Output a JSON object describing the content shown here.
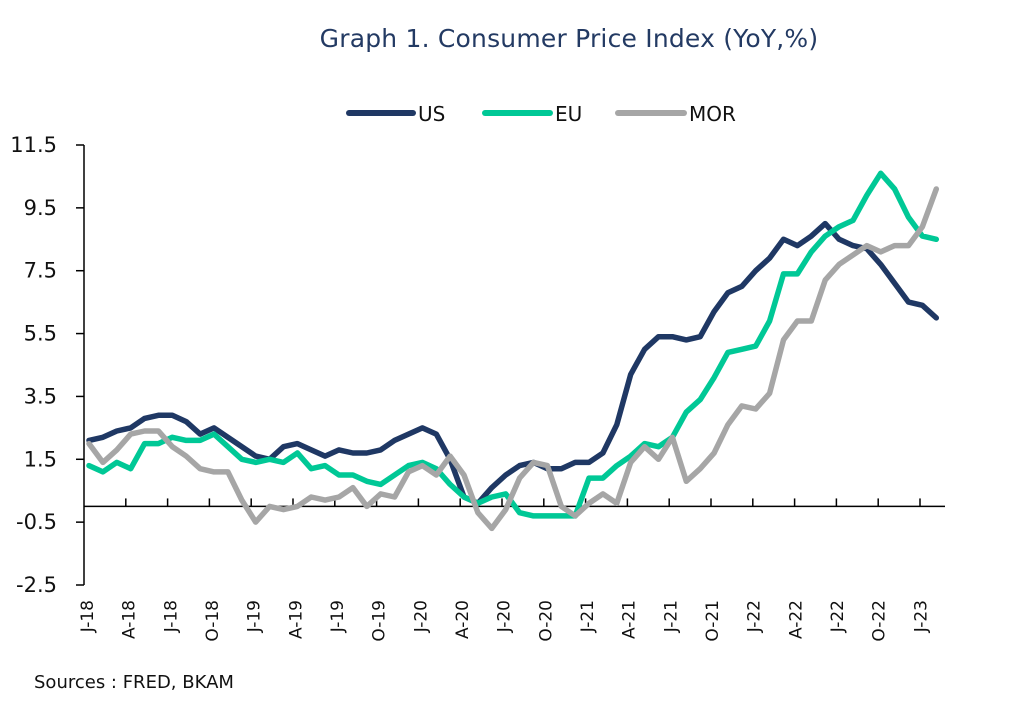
{
  "chart_data": {
    "type": "line",
    "title": "Graph 1. Consumer Price Index (YoY,%)",
    "xlabel": "",
    "ylabel": "",
    "ylim": [
      -2.5,
      11.5
    ],
    "yticks": [
      "11.5",
      "9.5",
      "7.5",
      "5.5",
      "3.5",
      "1.5",
      "-0.5",
      "-2.5"
    ],
    "ytick_values": [
      11.5,
      9.5,
      7.5,
      5.5,
      3.5,
      1.5,
      -0.5,
      -2.5
    ],
    "xtick_labels": [
      "J-18",
      "A-18",
      "J-18",
      "O-18",
      "J-19",
      "A-19",
      "J-19",
      "O-19",
      "J-20",
      "A-20",
      "J-20",
      "O-20",
      "J-21",
      "A-21",
      "J-21",
      "O-21",
      "J-22",
      "A-22",
      "J-22",
      "O-22",
      "J-23"
    ],
    "x_start": "Jan 2018",
    "x_end": "Feb 2023",
    "x_frequency": "monthly",
    "grid": false,
    "legend_position": "top-center",
    "series": [
      {
        "name": "US",
        "color": "#1f3864",
        "values": [
          2.1,
          2.2,
          2.4,
          2.5,
          2.8,
          2.9,
          2.9,
          2.7,
          2.3,
          2.5,
          2.2,
          1.9,
          1.6,
          1.5,
          1.9,
          2.0,
          1.8,
          1.6,
          1.8,
          1.7,
          1.7,
          1.8,
          2.1,
          2.3,
          2.5,
          2.3,
          1.5,
          0.3,
          0.1,
          0.6,
          1.0,
          1.3,
          1.4,
          1.2,
          1.2,
          1.4,
          1.4,
          1.7,
          2.6,
          4.2,
          5.0,
          5.4,
          5.4,
          5.3,
          5.4,
          6.2,
          6.8,
          7.0,
          7.5,
          7.9,
          8.5,
          8.3,
          8.6,
          9.0,
          8.5,
          8.3,
          8.2,
          7.7,
          7.1,
          6.5,
          6.4,
          6.0
        ]
      },
      {
        "name": "EU",
        "color": "#00c896",
        "values": [
          1.3,
          1.1,
          1.4,
          1.2,
          2.0,
          2.0,
          2.2,
          2.1,
          2.1,
          2.3,
          1.9,
          1.5,
          1.4,
          1.5,
          1.4,
          1.7,
          1.2,
          1.3,
          1.0,
          1.0,
          0.8,
          0.7,
          1.0,
          1.3,
          1.4,
          1.2,
          0.7,
          0.3,
          0.1,
          0.3,
          0.4,
          -0.2,
          -0.3,
          -0.3,
          -0.3,
          -0.3,
          0.9,
          0.9,
          1.3,
          1.6,
          2.0,
          1.9,
          2.2,
          3.0,
          3.4,
          4.1,
          4.9,
          5.0,
          5.1,
          5.9,
          7.4,
          7.4,
          8.1,
          8.6,
          8.9,
          9.1,
          9.9,
          10.6,
          10.1,
          9.2,
          8.6,
          8.5
        ]
      },
      {
        "name": "MOR",
        "color": "#a6a6a6",
        "values": [
          2.0,
          1.4,
          1.8,
          2.3,
          2.4,
          2.4,
          1.9,
          1.6,
          1.2,
          1.1,
          1.1,
          0.2,
          -0.5,
          0.0,
          -0.1,
          0.0,
          0.3,
          0.2,
          0.3,
          0.6,
          0.0,
          0.4,
          0.3,
          1.1,
          1.3,
          1.0,
          1.6,
          1.0,
          -0.2,
          -0.7,
          -0.1,
          0.9,
          1.4,
          1.3,
          0.0,
          -0.3,
          0.1,
          0.4,
          0.1,
          1.4,
          1.9,
          1.5,
          2.2,
          0.8,
          1.2,
          1.7,
          2.6,
          3.2,
          3.1,
          3.6,
          5.3,
          5.9,
          5.9,
          7.2,
          7.7,
          8.0,
          8.3,
          8.1,
          8.3,
          8.3,
          8.9,
          10.1
        ]
      }
    ]
  },
  "source_note": "Sources : FRED, BKAM"
}
